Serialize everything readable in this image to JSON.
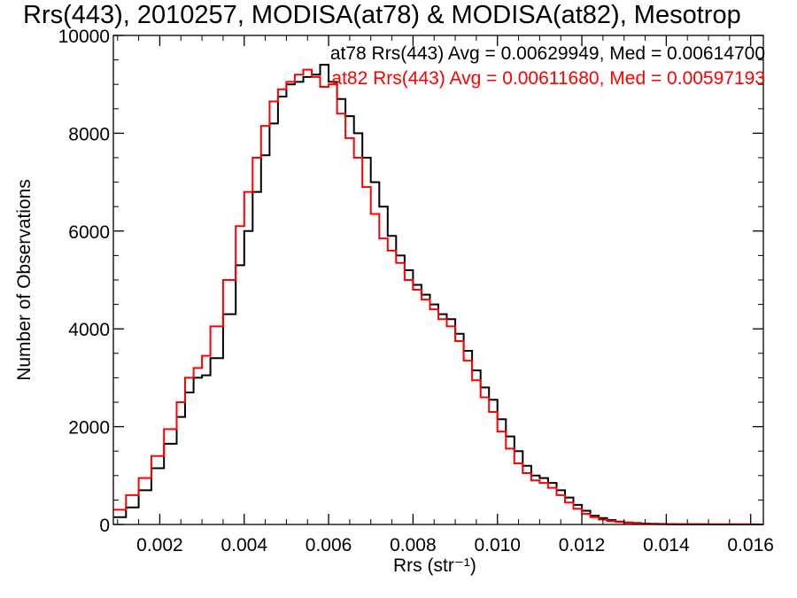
{
  "chart_data": {
    "type": "line",
    "style": "step",
    "title": "Rrs(443), 2010257, MODISA(at78) & MODISA(at82), Mesotrop",
    "xlabel": "Rrs (str⁻¹)",
    "ylabel": "Number of Observations",
    "xlim": [
      0.0009,
      0.0163
    ],
    "ylim": [
      0,
      10000
    ],
    "xticks": [
      "0.002",
      "0.004",
      "0.006",
      "0.008",
      "0.010",
      "0.012",
      "0.014",
      "0.016"
    ],
    "xtick_values": [
      0.002,
      0.004,
      0.006,
      0.008,
      0.01,
      0.012,
      0.014,
      0.016
    ],
    "yticks": [
      "0",
      "2000",
      "4000",
      "6000",
      "8000",
      "10000"
    ],
    "ytick_values": [
      0,
      2000,
      4000,
      6000,
      8000,
      10000
    ],
    "grid": false,
    "legend_position": "top-right",
    "series": [
      {
        "name": "at78",
        "color": "#000000",
        "legend_text": "at78 Rrs(443) Avg = 0.00629949, Med = 0.00614700",
        "x": [
          0.0009,
          0.0012,
          0.0015,
          0.0018,
          0.0021,
          0.0024,
          0.0026,
          0.0028,
          0.003,
          0.0032,
          0.0035,
          0.0038,
          0.004,
          0.0042,
          0.0044,
          0.0046,
          0.0048,
          0.005,
          0.0052,
          0.0054,
          0.0056,
          0.0058,
          0.006,
          0.0062,
          0.0064,
          0.0066,
          0.0068,
          0.007,
          0.0072,
          0.0074,
          0.0076,
          0.0078,
          0.008,
          0.0082,
          0.0084,
          0.0086,
          0.0088,
          0.009,
          0.0092,
          0.0094,
          0.0096,
          0.0098,
          0.01,
          0.0102,
          0.0104,
          0.0106,
          0.0108,
          0.011,
          0.0112,
          0.0114,
          0.0116,
          0.0118,
          0.012,
          0.0122,
          0.0124,
          0.0126,
          0.0128,
          0.013,
          0.0132,
          0.0134,
          0.0136,
          0.0138,
          0.014,
          0.0142,
          0.0144,
          0.0146,
          0.0148,
          0.015,
          0.0152,
          0.0154,
          0.0156,
          0.0158,
          0.016,
          0.0162
        ],
        "values": [
          150,
          350,
          700,
          1150,
          1650,
          2200,
          2700,
          3000,
          3050,
          3400,
          4300,
          5300,
          6000,
          6800,
          7550,
          8200,
          8750,
          9000,
          9050,
          9150,
          9200,
          9400,
          9050,
          8700,
          8350,
          8000,
          7500,
          7000,
          6500,
          5900,
          5500,
          5200,
          4900,
          4700,
          4500,
          4300,
          4200,
          3900,
          3550,
          3150,
          2800,
          2550,
          2150,
          1800,
          1500,
          1200,
          1000,
          950,
          850,
          700,
          550,
          400,
          280,
          180,
          130,
          90,
          60,
          40,
          30,
          20,
          15,
          10,
          8,
          6,
          5,
          4,
          3,
          2,
          2,
          1,
          1,
          1,
          1,
          0
        ]
      },
      {
        "name": "at82",
        "color": "#ff0000",
        "legend_text": "at82 Rrs(443) Avg = 0.00611680, Med = 0.00597193",
        "x": [
          0.0009,
          0.0012,
          0.0015,
          0.0018,
          0.0021,
          0.0024,
          0.0026,
          0.0028,
          0.003,
          0.0032,
          0.0035,
          0.0038,
          0.004,
          0.0042,
          0.0044,
          0.0046,
          0.0048,
          0.005,
          0.0052,
          0.0054,
          0.0056,
          0.0058,
          0.006,
          0.0062,
          0.0064,
          0.0066,
          0.0068,
          0.007,
          0.0072,
          0.0074,
          0.0076,
          0.0078,
          0.008,
          0.0082,
          0.0084,
          0.0086,
          0.0088,
          0.009,
          0.0092,
          0.0094,
          0.0096,
          0.0098,
          0.01,
          0.0102,
          0.0104,
          0.0106,
          0.0108,
          0.011,
          0.0112,
          0.0114,
          0.0116,
          0.0118,
          0.012,
          0.0122,
          0.0124,
          0.0126,
          0.0128,
          0.013,
          0.0132,
          0.0134,
          0.0136,
          0.0138,
          0.014,
          0.0142,
          0.0144,
          0.0146,
          0.0148,
          0.015,
          0.0152,
          0.0154,
          0.0156,
          0.0158,
          0.016,
          0.0162
        ],
        "values": [
          300,
          600,
          950,
          1400,
          1950,
          2500,
          3000,
          3200,
          3450,
          4050,
          5000,
          6100,
          6800,
          7500,
          8150,
          8650,
          8900,
          9050,
          9200,
          9300,
          9150,
          8950,
          9000,
          8400,
          7900,
          7500,
          6900,
          6350,
          5850,
          5600,
          5350,
          5000,
          4800,
          4600,
          4400,
          4200,
          4050,
          3750,
          3350,
          2950,
          2600,
          2300,
          1900,
          1550,
          1250,
          1050,
          900,
          850,
          750,
          600,
          450,
          320,
          220,
          150,
          100,
          70,
          50,
          35,
          25,
          15,
          10,
          8,
          6,
          5,
          4,
          3,
          2,
          2,
          1,
          1,
          1,
          1,
          0,
          0
        ]
      }
    ]
  }
}
